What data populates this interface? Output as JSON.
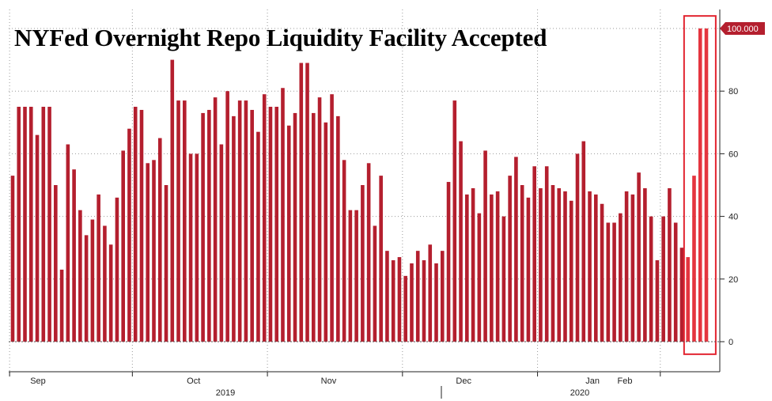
{
  "chart_data": {
    "type": "bar",
    "title": "NYFed Overnight Repo Liquidity Facility Accepted",
    "ylim": [
      -10,
      104
    ],
    "yticks": [
      0,
      20,
      40,
      60,
      80
    ],
    "last_value_label": "100.000",
    "grid": "dotted",
    "month_labels": [
      "Sep",
      "Oct",
      "Nov",
      "Dec",
      "Jan",
      "Feb"
    ],
    "year_labels": [
      "2019",
      "2020"
    ],
    "bar_color": "#b41f2e",
    "highlight_color": "#e4353f",
    "values": [
      53,
      75,
      75,
      75,
      66,
      75,
      75,
      50,
      23,
      63,
      55,
      42,
      34,
      39,
      47,
      37,
      31,
      46,
      61,
      68,
      75,
      74,
      57,
      58,
      65,
      50,
      90,
      77,
      77,
      60,
      60,
      73,
      74,
      78,
      63,
      80,
      72,
      77,
      77,
      74,
      67,
      79,
      75,
      75,
      81,
      69,
      73,
      89,
      89,
      73,
      78,
      70,
      79,
      72,
      58,
      42,
      42,
      50,
      57,
      37,
      53,
      29,
      26,
      27,
      21,
      25,
      29,
      26,
      31,
      25,
      29,
      51,
      77,
      64,
      47,
      49,
      41,
      61,
      47,
      48,
      40,
      53,
      59,
      50,
      46,
      56,
      49,
      56,
      50,
      49,
      48,
      45,
      60,
      64,
      48,
      47,
      44,
      38,
      38,
      41,
      48,
      47,
      54,
      49,
      40,
      26,
      40,
      49,
      38,
      30,
      27,
      53,
      100,
      100
    ],
    "month_start_index": [
      0,
      20,
      42,
      64,
      86,
      106
    ],
    "highlight_start_index": 110
  }
}
